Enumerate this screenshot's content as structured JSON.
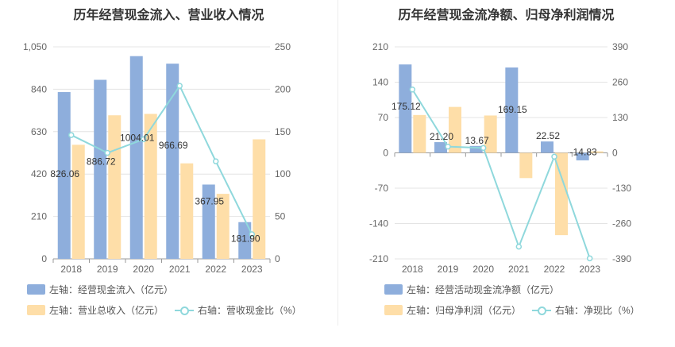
{
  "colors": {
    "bar1": "#8eaedc",
    "bar2": "#fedea8",
    "line": "#8fd8dc",
    "grid": "#e4e4e4"
  },
  "charts": [
    {
      "title": "历年经营现金流入、营业收入情况",
      "legend": [
        "左轴：经营现金流入（亿元）",
        "左轴：营业总收入（亿元）",
        "右轴：营收现金比（%）"
      ]
    },
    {
      "title": "历年经营现金流净额、归母净利润情况",
      "legend": [
        "左轴：经营活动现金流净额（亿元）",
        "左轴：归母净利润（亿元）",
        "右轴：净现比（%）"
      ]
    }
  ],
  "chart_data": [
    {
      "type": "bar",
      "title": "历年经营现金流入、营业收入情况",
      "categories": [
        "2018",
        "2019",
        "2020",
        "2021",
        "2022",
        "2023"
      ],
      "left_axis": {
        "ticks": [
          "0",
          "210",
          "420",
          "630",
          "840",
          "1,050"
        ],
        "ylim": [
          0,
          1050
        ]
      },
      "right_axis": {
        "ticks": [
          "0",
          "50",
          "100",
          "150",
          "200",
          "250"
        ],
        "ylim": [
          0,
          250
        ]
      },
      "series": [
        {
          "name": "左轴：经营现金流入（亿元）",
          "axis": "left",
          "kind": "bar",
          "values": [
            826.06,
            886.72,
            1004.01,
            966.69,
            367.95,
            181.9
          ],
          "labels": [
            "826.06",
            "886.72",
            "1004.01",
            "966.69",
            "367.95",
            "181.90"
          ]
        },
        {
          "name": "左轴：营业总收入（亿元）",
          "axis": "left",
          "kind": "bar",
          "values": [
            565,
            711,
            718,
            473,
            322,
            592
          ]
        },
        {
          "name": "右轴：营收现金比（%）",
          "axis": "right",
          "kind": "line",
          "values": [
            146,
            125,
            141,
            204,
            115,
            29
          ]
        }
      ]
    },
    {
      "type": "bar",
      "title": "历年经营现金流净额、归母净利润情况",
      "categories": [
        "2018",
        "2019",
        "2020",
        "2021",
        "2022",
        "2023"
      ],
      "left_axis": {
        "ticks": [
          "-210",
          "-140",
          "-70",
          "0",
          "70",
          "140",
          "210"
        ],
        "ylim": [
          -210,
          210
        ]
      },
      "right_axis": {
        "ticks": [
          "-390",
          "-260",
          "-130",
          "0",
          "130",
          "260",
          "390"
        ],
        "ylim": [
          -390,
          390
        ]
      },
      "series": [
        {
          "name": "左轴：经营活动现金流净额（亿元）",
          "axis": "left",
          "kind": "bar",
          "values": [
            175.12,
            21.2,
            13.67,
            169.15,
            22.52,
            -14.83
          ],
          "labels": [
            "175.12",
            "21.20",
            "13.67",
            "169.15",
            "22.52",
            "-14.83"
          ]
        },
        {
          "name": "左轴：归母净利润（亿元）",
          "axis": "left",
          "kind": "bar",
          "values": [
            75,
            91,
            74,
            -50,
            -163,
            3
          ]
        },
        {
          "name": "右轴：净现比（%）",
          "axis": "right",
          "kind": "line",
          "values": [
            233,
            23,
            18,
            -345,
            -14,
            -388
          ]
        }
      ]
    }
  ]
}
